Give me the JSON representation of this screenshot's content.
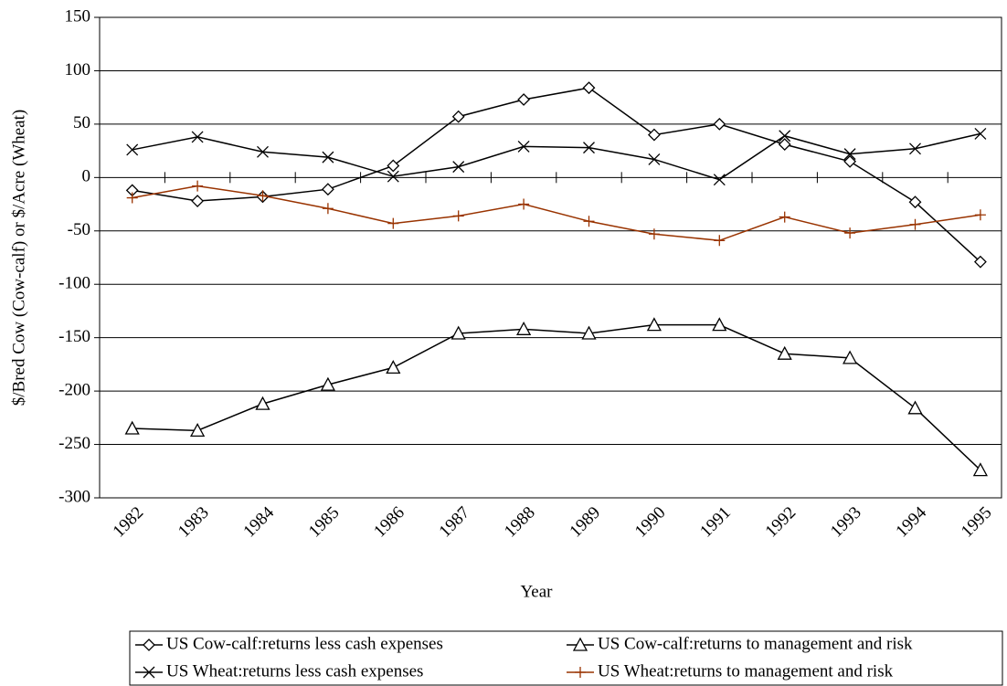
{
  "chart_data": {
    "type": "line",
    "x_label": "Year",
    "y_label": "$/Bred Cow (Cow-calf) or $/Acre (Wheat)",
    "categories": [
      "1982",
      "1983",
      "1984",
      "1985",
      "1986",
      "1987",
      "1988",
      "1989",
      "1990",
      "1991",
      "1992",
      "1993",
      "1994",
      "1995"
    ],
    "series": [
      {
        "name": "US Cow-calf:returns less cash expenses",
        "color": "#000000",
        "marker": "diamond",
        "values": [
          -12,
          -22,
          -18,
          -11,
          11,
          57,
          73,
          84,
          40,
          50,
          31,
          15,
          -23,
          -79
        ]
      },
      {
        "name": "US Cow-calf:returns to management and risk",
        "color": "#000000",
        "marker": "triangle",
        "values": [
          -235,
          -237,
          -212,
          -194,
          -178,
          -146,
          -142,
          -146,
          -138,
          -138,
          -165,
          -169,
          -216,
          -274
        ]
      },
      {
        "name": "US Wheat:returns less cash expenses",
        "color": "#000000",
        "marker": "x",
        "values": [
          26,
          38,
          24,
          19,
          1,
          10,
          29,
          28,
          17,
          -2,
          39,
          22,
          27,
          41
        ]
      },
      {
        "name": "US Wheat:returns to management and risk",
        "color": "#993300",
        "marker": "plus",
        "values": [
          -19,
          -8,
          -17,
          -29,
          -43,
          -36,
          -25,
          -41,
          -53,
          -59,
          -37,
          -52,
          -44,
          -35
        ]
      }
    ],
    "ylim": [
      -300,
      150
    ],
    "yticks": [
      -300,
      -250,
      -200,
      -150,
      -100,
      -50,
      0,
      50,
      100,
      150
    ],
    "grid": true,
    "legend": "bottom"
  }
}
